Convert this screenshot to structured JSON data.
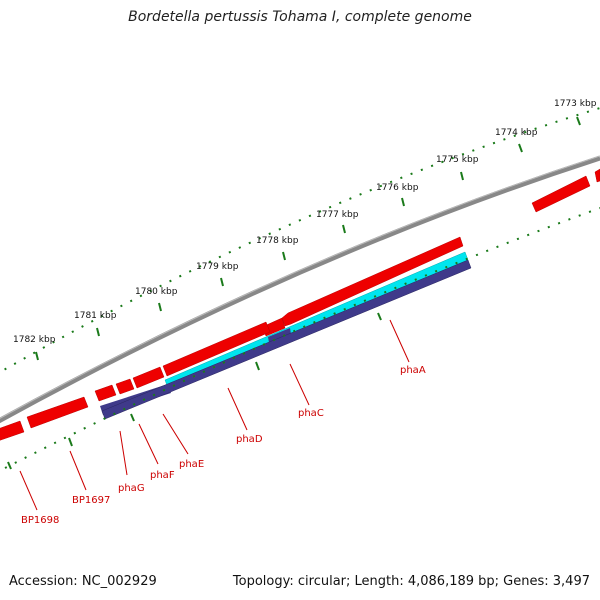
{
  "title": "Bordetella pertussis Tohama I, complete genome",
  "accession": "Accession: NC_002929",
  "summary": "Topology: circular; Length: 4,086,189 bp; Genes: 3,497",
  "kbp_labels": [
    "1773 kbp",
    "1774 kbp",
    "1775 kbp",
    "1776 kbp",
    "1777 kbp",
    "1778 kbp",
    "1779 kbp",
    "1780 kbp",
    "1781 kbp",
    "1782 kbp"
  ],
  "gene_labels": [
    "phaA",
    "phaC",
    "phaD",
    "phaE",
    "phaF",
    "phaG",
    "BP1697",
    "BP1698"
  ],
  "colors": {
    "backbone": "#888888",
    "gene_cds": "#ee0000",
    "feature_cyan": "#00e5ee",
    "feature_navy": "#3f3a8a",
    "tick_green": "#1a7a1a",
    "label_red": "#cc0000"
  }
}
